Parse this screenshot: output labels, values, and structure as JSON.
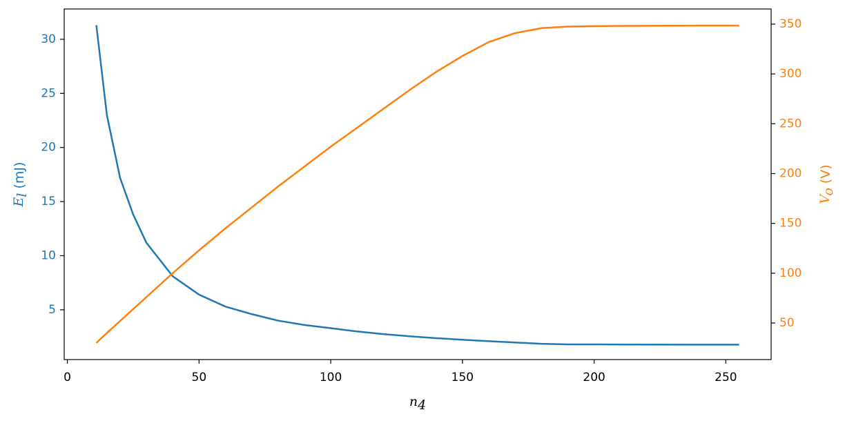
{
  "chart_data": {
    "type": "line",
    "xlabel": {
      "symbol": "n",
      "subscript": "4"
    },
    "ylabel": {
      "symbol": "E",
      "subscript": "l",
      "unit": "(mJ)"
    },
    "y2label": {
      "symbol": "V",
      "subscript": "o",
      "unit": "(V)"
    },
    "x": [
      11,
      15,
      20,
      25,
      30,
      40,
      50,
      60,
      70,
      80,
      90,
      100,
      110,
      120,
      130,
      140,
      150,
      160,
      170,
      180,
      190,
      200,
      220,
      240,
      255
    ],
    "series": [
      {
        "name": "E_l",
        "color": "#1f77b4",
        "axis": "y",
        "values": [
          31.3,
          23.0,
          17.2,
          13.8,
          11.2,
          8.1,
          6.4,
          5.3,
          4.6,
          4.0,
          3.6,
          3.3,
          3.0,
          2.75,
          2.55,
          2.38,
          2.23,
          2.1,
          1.98,
          1.86,
          1.8,
          1.8,
          1.79,
          1.78,
          1.78
        ]
      },
      {
        "name": "V_o",
        "color": "#ff7f0e",
        "axis": "y2",
        "values": [
          30,
          40,
          52,
          64,
          76,
          100,
          123,
          145,
          166,
          187,
          207,
          227,
          246,
          265,
          284,
          302,
          318,
          332,
          341,
          346,
          347.5,
          348,
          348.3,
          348.5,
          348.5
        ]
      }
    ],
    "xlim": [
      -1.2,
      267.2
    ],
    "xticks": [
      0,
      50,
      100,
      150,
      200,
      250
    ],
    "ylim": [
      0.4,
      32.8
    ],
    "yticks": [
      5,
      10,
      15,
      20,
      25,
      30
    ],
    "y2lim": [
      13.3,
      365.2
    ],
    "y2ticks": [
      50,
      100,
      150,
      200,
      250,
      300,
      350
    ],
    "grid": false
  }
}
